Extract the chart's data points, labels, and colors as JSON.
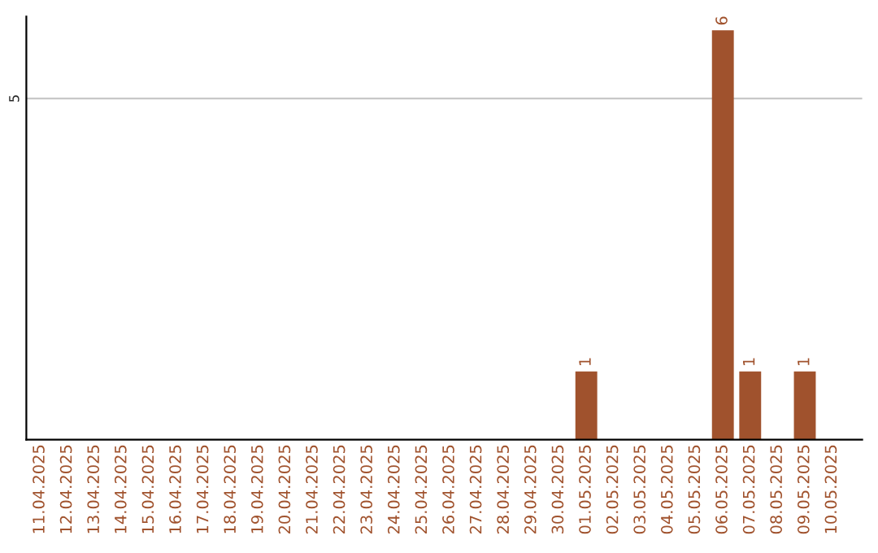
{
  "chart_data": {
    "type": "bar",
    "categories": [
      "11.04.2025",
      "12.04.2025",
      "13.04.2025",
      "14.04.2025",
      "15.04.2025",
      "16.04.2025",
      "17.04.2025",
      "18.04.2025",
      "19.04.2025",
      "20.04.2025",
      "21.04.2025",
      "22.04.2025",
      "23.04.2025",
      "24.04.2025",
      "25.04.2025",
      "26.04.2025",
      "27.04.2025",
      "28.04.2025",
      "29.04.2025",
      "30.04.2025",
      "01.05.2025",
      "02.05.2025",
      "03.05.2025",
      "04.05.2025",
      "05.05.2025",
      "06.05.2025",
      "07.05.2025",
      "08.05.2025",
      "09.05.2025",
      "10.05.2025"
    ],
    "values": [
      null,
      null,
      null,
      null,
      null,
      null,
      null,
      null,
      null,
      null,
      null,
      null,
      null,
      null,
      null,
      null,
      null,
      null,
      null,
      null,
      1,
      null,
      null,
      null,
      null,
      6,
      1,
      null,
      1,
      null
    ],
    "data_labels": true,
    "color": "#a0522d",
    "ylim": [
      0,
      6.2
    ],
    "yticks": [
      5
    ],
    "grid": "y",
    "legend": false
  }
}
